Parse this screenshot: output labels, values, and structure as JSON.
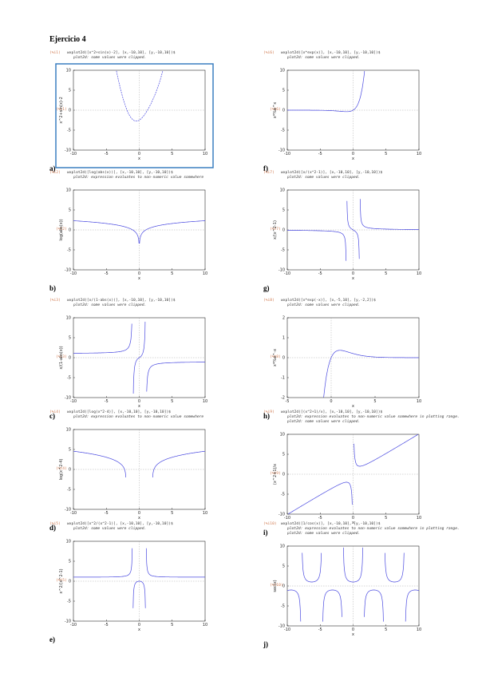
{
  "header": {
    "title": "Ejercicio 4"
  },
  "panels": [
    {
      "label": "a)",
      "prompt": "(%i1)",
      "command": "wxplot2d([x^2+sin(x)-2], [x,-10,10], [y,-10,10])$",
      "messages": [
        "plot2d: some values were clipped."
      ],
      "out": "(%t1)",
      "ylabel": "x^2+sin(x)-2",
      "xlabel": "x",
      "xlim": [
        -10,
        10
      ],
      "ylim": [
        -10,
        10
      ],
      "xticks": [
        -10,
        -5,
        0,
        5,
        10
      ],
      "yticks": [
        -10,
        -5,
        0,
        5,
        10
      ]
    },
    {
      "label": "b)",
      "prompt": "(%i2)",
      "command": "wxplot2d([log(abs(x))], [x,-10,10], [y,-10,10])$",
      "messages": [
        "plot2d: expression evaluates to non-numeric value somewhere"
      ],
      "out": "(%t2)",
      "ylabel": "log(abs(x))",
      "xlabel": "x",
      "xlim": [
        -10,
        10
      ],
      "ylim": [
        -10,
        10
      ],
      "xticks": [
        -10,
        -5,
        0,
        5,
        10
      ],
      "yticks": [
        -10,
        -5,
        0,
        5,
        10
      ]
    },
    {
      "label": "c)",
      "prompt": "(%i3)",
      "command": "wxplot2d([x/(1-abs(x))], [x,-10,10], [y,-10,10])$",
      "messages": [
        "plot2d: some values were clipped."
      ],
      "out": "(%t3)",
      "ylabel": "x/(1-abs(x))",
      "xlabel": "x",
      "xlim": [
        -10,
        10
      ],
      "ylim": [
        -10,
        10
      ],
      "xticks": [
        -10,
        -5,
        0,
        5,
        10
      ],
      "yticks": [
        -10,
        -5,
        0,
        5,
        10
      ]
    },
    {
      "label": "d)",
      "prompt": "(%i4)",
      "command": "wxplot2d([log(x^2-4)], [x,-10,10], [y,-10,10])$",
      "messages": [
        "plot2d: expression evaluates to non-numeric value somewhere"
      ],
      "out": "(%t4)",
      "ylabel": "log(x^2-4)",
      "xlabel": "x",
      "xlim": [
        -10,
        10
      ],
      "ylim": [
        -10,
        10
      ],
      "xticks": [
        -10,
        -5,
        0,
        5,
        10
      ],
      "yticks": [
        -10,
        -5,
        0,
        5,
        10
      ]
    },
    {
      "label": "e)",
      "prompt": "(%i5)",
      "command": "wxplot2d([x^2/(x^2-1)], [x,-10,10], [y,-10,10])$",
      "messages": [
        "plot2d: some values were clipped."
      ],
      "out": "(%t5)",
      "ylabel": "x^2/(x^2-1)",
      "xlabel": "x",
      "xlim": [
        -10,
        10
      ],
      "ylim": [
        -10,
        10
      ],
      "xticks": [
        -10,
        -5,
        0,
        5,
        10
      ],
      "yticks": [
        -10,
        -5,
        0,
        5,
        10
      ]
    },
    {
      "label": "f)",
      "prompt": "(%i6)",
      "command": "wxplot2d([x*exp(x)], [x,-10,10], [y,-10,10])$",
      "messages": [
        "plot2d: some values were clipped."
      ],
      "out": "(%t6)",
      "ylabel": "x*%e^x",
      "xlabel": "x",
      "xlim": [
        -10,
        10
      ],
      "ylim": [
        -10,
        10
      ],
      "xticks": [
        -10,
        -5,
        0,
        5,
        10
      ],
      "yticks": [
        -10,
        -5,
        0,
        5,
        10
      ]
    },
    {
      "label": "g)",
      "prompt": "(%i7)",
      "command": "wxplot2d([x/(x^2-1)], [x,-10,10], [y,-10,10])$",
      "messages": [
        "plot2d: some values were clipped."
      ],
      "out": "(%t7)",
      "ylabel": "x/(x^2-1)",
      "xlabel": "x",
      "xlim": [
        -10,
        10
      ],
      "ylim": [
        -10,
        10
      ],
      "xticks": [
        -10,
        -5,
        0,
        5,
        10
      ],
      "yticks": [
        -10,
        -5,
        0,
        5,
        10
      ]
    },
    {
      "label": "h)",
      "prompt": "(%i8)",
      "command": "wxplot2d([x*exp(-x)], [x,-5,10], [y,-2,2])$",
      "messages": [
        "plot2d: some values were clipped."
      ],
      "out": "(%t8)",
      "ylabel": "x*%e^-x",
      "xlabel": "x",
      "xlim": [
        -5,
        10
      ],
      "ylim": [
        -2,
        2
      ],
      "xticks": [
        -5,
        0,
        5,
        10
      ],
      "yticks": [
        -2,
        -1,
        0,
        1,
        2
      ]
    },
    {
      "label": "i)",
      "prompt": "(%i9)",
      "command": "wxplot2d([(x^2+1)/x], [x,-10,10], [y,-10,10])$",
      "messages": [
        "plot2d: expression evaluates to non-numeric value somewhere in plotting range.",
        "plot2d: some values were clipped."
      ],
      "out": "(%t9)",
      "ylabel": "(x^2+1)/x",
      "xlabel": "x",
      "xlim": [
        -10,
        10
      ],
      "ylim": [
        -10,
        10
      ],
      "xticks": [
        -10,
        -5,
        0,
        5,
        10
      ],
      "yticks": [
        -10,
        -5,
        0,
        5,
        10
      ]
    },
    {
      "label": "j)",
      "prompt": "(%i10)",
      "command": "wxplot2d([1/cos(x)], [x,-10,10], [y,-10,10])$",
      "messages": [
        "plot2d: expression evaluates to non-numeric value somewhere in plotting range.",
        "plot2d: some values were clipped."
      ],
      "out": "(%t10)",
      "ylabel": "sec(x)",
      "xlabel": "x",
      "xlim": [
        -10,
        10
      ],
      "ylim": [
        -10,
        10
      ],
      "xticks": [
        -10,
        -5,
        0,
        5,
        10
      ],
      "yticks": [
        -10,
        -5,
        0,
        5,
        10
      ]
    }
  ]
}
